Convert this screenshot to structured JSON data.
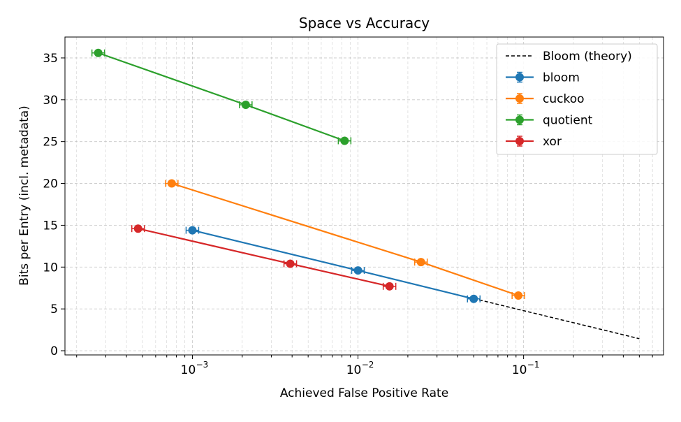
{
  "chart_data": {
    "type": "line",
    "title": "Space vs Accuracy",
    "xlabel": "Achieved False Positive Rate",
    "ylabel": "Bits per Entry (incl. metadata)",
    "xscale": "log",
    "xlim": [
      0.00017,
      0.7
    ],
    "ylim": [
      -0.5,
      37.5
    ],
    "yticks": [
      0,
      5,
      10,
      15,
      20,
      25,
      30,
      35
    ],
    "ytick_labels": [
      "0",
      "5",
      "10",
      "15",
      "20",
      "25",
      "30",
      "35"
    ],
    "xticks": [
      0.001,
      0.01,
      0.1
    ],
    "xtick_labels": [
      {
        "base": "10",
        "exp": "−3"
      },
      {
        "base": "10",
        "exp": "−2"
      },
      {
        "base": "10",
        "exp": "−1"
      }
    ],
    "grid": true,
    "legend_position": "top-right",
    "theory": {
      "name": "Bloom (theory)",
      "color": "#000000",
      "style": "dashed",
      "x": [
        0.05,
        0.1,
        0.2,
        0.3,
        0.5
      ],
      "y": [
        6.24,
        4.79,
        3.35,
        2.51,
        1.44
      ]
    },
    "series": [
      {
        "name": "bloom",
        "color": "#1f77b4",
        "x": [
          0.001,
          0.01,
          0.05
        ],
        "y": [
          14.4,
          9.6,
          6.2
        ]
      },
      {
        "name": "cuckoo",
        "color": "#ff7f0e",
        "x": [
          0.00075,
          0.024,
          0.093
        ],
        "y": [
          20.0,
          10.6,
          6.6
        ]
      },
      {
        "name": "quotient",
        "color": "#2ca02c",
        "x": [
          0.00027,
          0.0021,
          0.0083
        ],
        "y": [
          35.6,
          29.4,
          25.1
        ]
      },
      {
        "name": "xor",
        "color": "#d62728",
        "x": [
          0.00047,
          0.0039,
          0.0155
        ],
        "y": [
          14.6,
          10.4,
          7.7
        ]
      }
    ]
  }
}
